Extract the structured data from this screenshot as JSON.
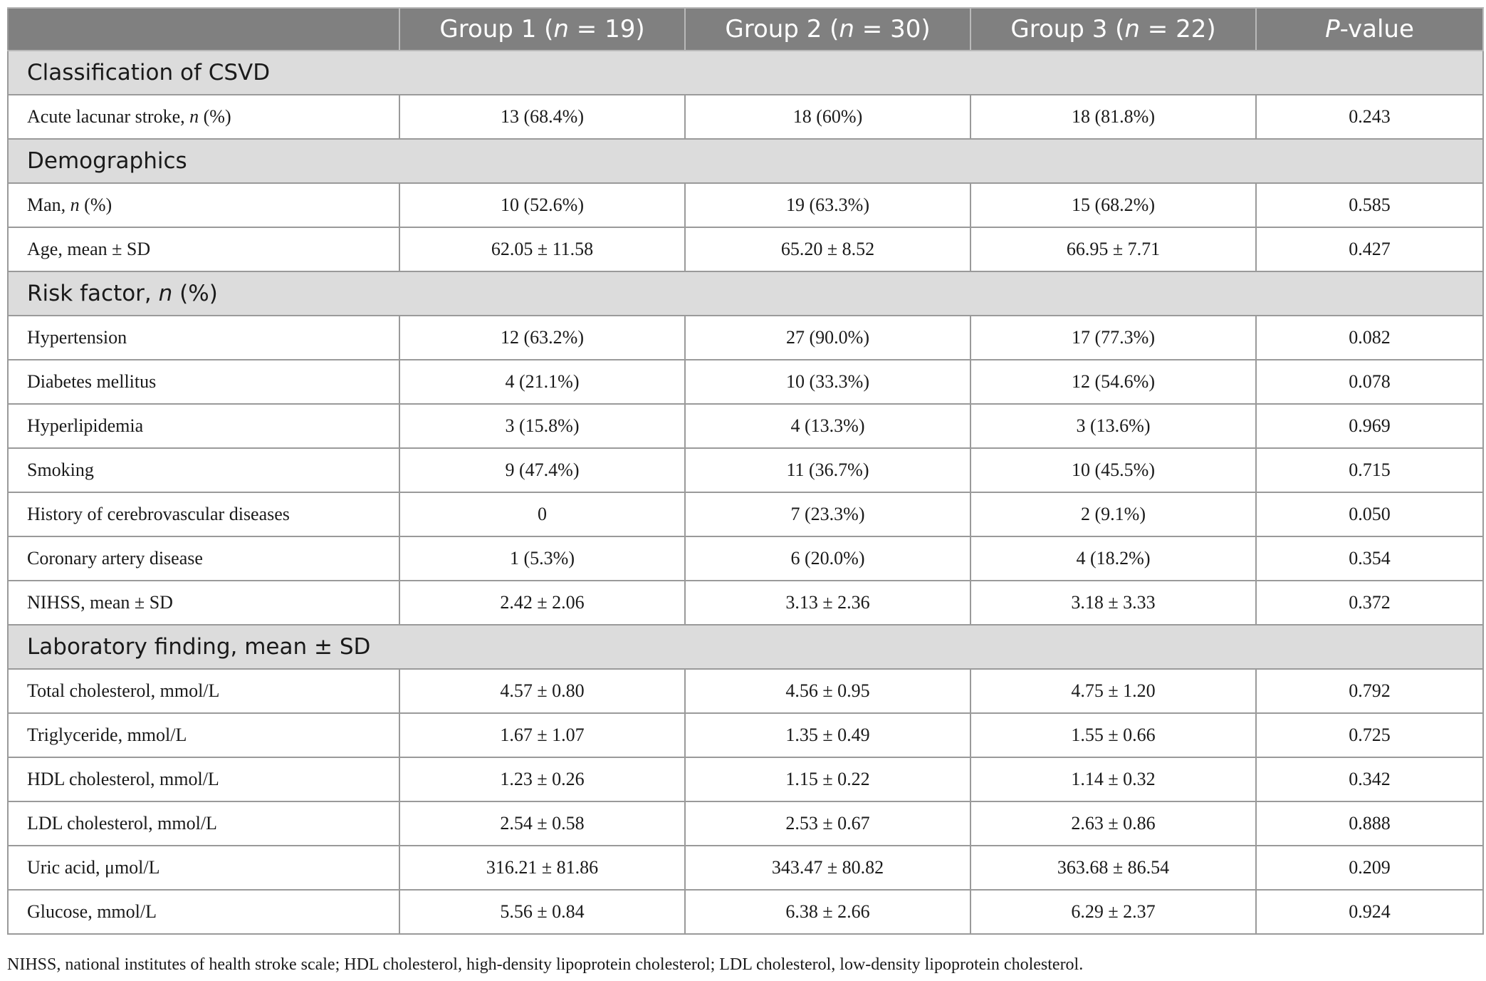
{
  "header": {
    "col0": "",
    "groups": [
      {
        "name": "Group 1 (",
        "n_label": "n",
        "n_rest": " = 19)"
      },
      {
        "name": "Group 2 (",
        "n_label": "n",
        "n_rest": " = 30)"
      },
      {
        "name": "Group 3 (",
        "n_label": "n",
        "n_rest": " = 22)"
      }
    ],
    "pvalue_italic": "P",
    "pvalue_rest": "-value"
  },
  "sections": {
    "classification": "Classification of CSVD",
    "demographics": "Demographics",
    "risk_factor_pre": "Risk factor, ",
    "risk_factor_it": "n",
    "risk_factor_post": " (%)",
    "laboratory": "Laboratory finding, mean ± SD"
  },
  "rows": {
    "acute": {
      "label_pre": "Acute lacunar stroke, ",
      "label_it": "n",
      "label_post": " (%)",
      "g1": "13 (68.4%)",
      "g2": "18 (60%)",
      "g3": "18 (81.8%)",
      "p": "0.243"
    },
    "man": {
      "label_pre": "Man, ",
      "label_it": "n",
      "label_post": " (%)",
      "g1": "10 (52.6%)",
      "g2": "19 (63.3%)",
      "g3": "15 (68.2%)",
      "p": "0.585"
    },
    "age": {
      "label": "Age, mean ± SD",
      "g1": "62.05 ± 11.58",
      "g2": "65.20 ± 8.52",
      "g3": "66.95 ± 7.71",
      "p": "0.427"
    },
    "hypertension": {
      "label": "Hypertension",
      "g1": "12 (63.2%)",
      "g2": "27 (90.0%)",
      "g3": "17 (77.3%)",
      "p": "0.082"
    },
    "diabetes": {
      "label": "Diabetes mellitus",
      "g1": "4 (21.1%)",
      "g2": "10 (33.3%)",
      "g3": "12 (54.6%)",
      "p": "0.078"
    },
    "hyperlipidemia": {
      "label": "Hyperlipidemia",
      "g1": "3 (15.8%)",
      "g2": "4 (13.3%)",
      "g3": "3 (13.6%)",
      "p": "0.969"
    },
    "smoking": {
      "label": "Smoking",
      "g1": "9 (47.4%)",
      "g2": "11 (36.7%)",
      "g3": "10 (45.5%)",
      "p": "0.715"
    },
    "history_cvd": {
      "label": "History of cerebrovascular diseases",
      "g1": "0",
      "g2": "7 (23.3%)",
      "g3": "2 (9.1%)",
      "p": "0.050"
    },
    "coronary": {
      "label": "Coronary artery disease",
      "g1": "1 (5.3%)",
      "g2": "6 (20.0%)",
      "g3": "4 (18.2%)",
      "p": "0.354"
    },
    "nihss": {
      "label": "NIHSS, mean ± SD",
      "g1": "2.42 ± 2.06",
      "g2": "3.13 ± 2.36",
      "g3": "3.18 ± 3.33",
      "p": "0.372"
    },
    "total_chol": {
      "label": "Total cholesterol, mmol/L",
      "g1": "4.57 ± 0.80",
      "g2": "4.56 ± 0.95",
      "g3": "4.75 ± 1.20",
      "p": "0.792"
    },
    "triglyceride": {
      "label": "Triglyceride, mmol/L",
      "g1": "1.67 ± 1.07",
      "g2": "1.35 ± 0.49",
      "g3": "1.55 ± 0.66",
      "p": "0.725"
    },
    "hdl": {
      "label": "HDL cholesterol, mmol/L",
      "g1": "1.23 ± 0.26",
      "g2": "1.15 ± 0.22",
      "g3": "1.14 ± 0.32",
      "p": "0.342"
    },
    "ldl": {
      "label": "LDL cholesterol, mmol/L",
      "g1": "2.54 ± 0.58",
      "g2": "2.53 ± 0.67",
      "g3": "2.63 ± 0.86",
      "p": "0.888"
    },
    "uric": {
      "label": "Uric acid, μmol/L",
      "g1": "316.21 ± 81.86",
      "g2": "343.47 ± 80.82",
      "g3": "363.68 ± 86.54",
      "p": "0.209"
    },
    "glucose": {
      "label": "Glucose, mmol/L",
      "g1": "5.56 ± 0.84",
      "g2": "6.38 ± 2.66",
      "g3": "6.29 ± 2.37",
      "p": "0.924"
    }
  },
  "footnote": "NIHSS, national institutes of health stroke scale; HDL cholesterol, high-density lipoprotein cholesterol; LDL cholesterol, low-density lipoprotein cholesterol."
}
